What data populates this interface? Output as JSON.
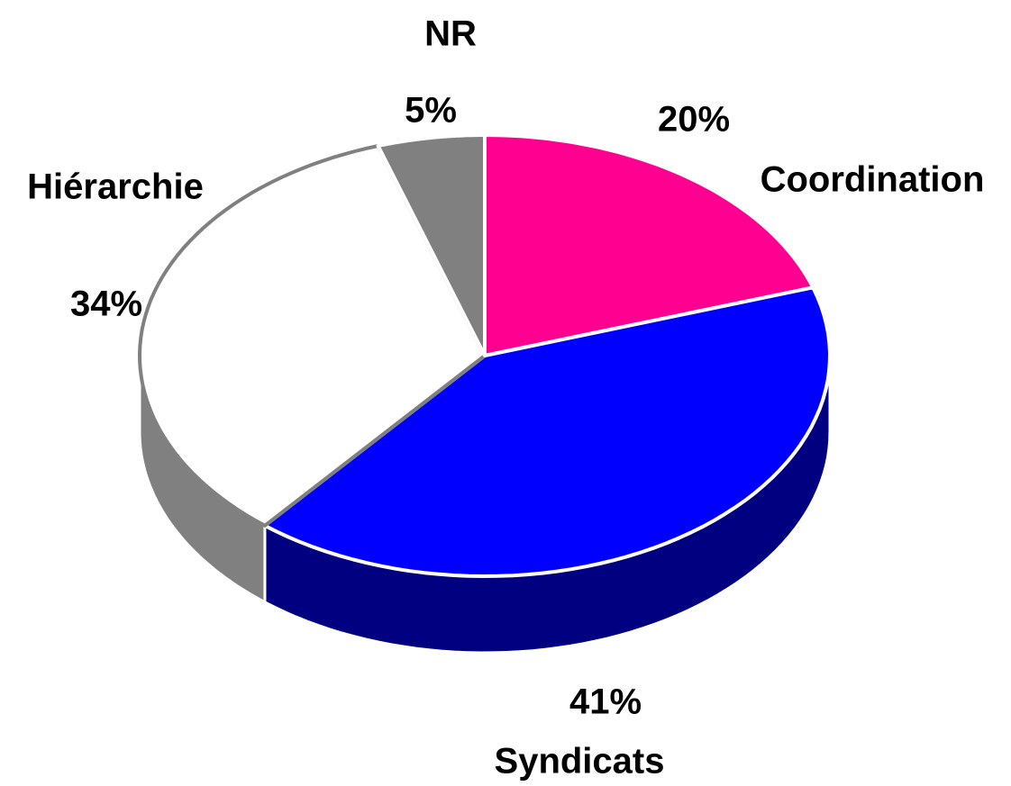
{
  "chart_data": {
    "type": "pie3d",
    "categories": [
      "Coordination",
      "Syndicats",
      "Hiérarchie",
      "NR"
    ],
    "values": [
      20,
      41,
      34,
      5
    ],
    "value_labels": [
      "20%",
      "41%",
      "34%",
      "5%"
    ],
    "colors": [
      "#ff0090",
      "#0000ff",
      "#ffffff",
      "#808080"
    ],
    "side_colors": [
      "#a00060",
      "#000080",
      "#808080",
      "#606060"
    ]
  }
}
